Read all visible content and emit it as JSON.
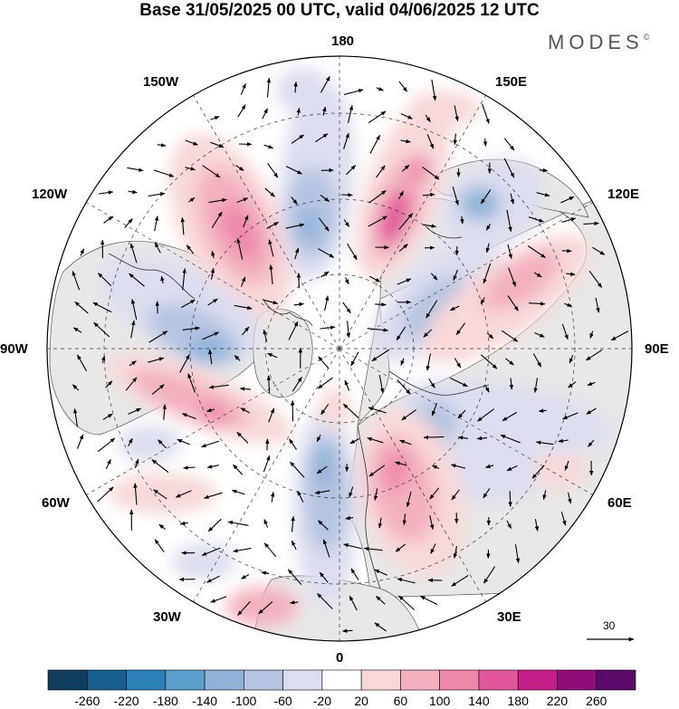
{
  "title": "Base 31/05/2025 00 UTC, valid 04/06/2025 12 UTC",
  "brand": "MODES",
  "brand_mark": "©",
  "longitude_labels": {
    "lon_180": "180",
    "lon_150E": "150E",
    "lon_120E": "120E",
    "lon_90E": "90E",
    "lon_60E": "60E",
    "lon_30E": "30E",
    "lon_0": "0",
    "lon_30W": "30W",
    "lon_60W": "60W",
    "lon_90W": "90W",
    "lon_120W": "120W",
    "lon_150W": "150W"
  },
  "reference_vector_label": "30",
  "colorbar": {
    "ticks": [
      "-260",
      "-220",
      "-180",
      "-140",
      "-100",
      "-60",
      "-20",
      "20",
      "60",
      "100",
      "140",
      "180",
      "220",
      "260"
    ],
    "colors": [
      "#0f3d5e",
      "#165f8f",
      "#2b80b8",
      "#5a9fcc",
      "#8fb2d8",
      "#b6c4e0",
      "#dcddee",
      "#ffffff",
      "#f7d8d8",
      "#f4b0bf",
      "#ee88ab",
      "#e0569a",
      "#c41f88",
      "#8e0e7a",
      "#5b0a6b"
    ]
  },
  "map": {
    "projection": "north-polar-stereographic",
    "anomaly_pattern": [
      {
        "sector": "180",
        "sign": "negative",
        "level": 100
      },
      {
        "sector": "160E",
        "sign": "positive",
        "level": 180
      },
      {
        "sector": "130E",
        "sign": "negative",
        "level": 140
      },
      {
        "sector": "100E",
        "sign": "positive",
        "level": 60
      },
      {
        "sector": "70E",
        "sign": "negative",
        "level": 60
      },
      {
        "sector": "40E",
        "sign": "positive",
        "level": 140
      },
      {
        "sector": "10W",
        "sign": "negative",
        "level": 140
      },
      {
        "sector": "60W",
        "sign": "positive",
        "level": 140
      },
      {
        "sector": "100W",
        "sign": "negative",
        "level": 140
      },
      {
        "sector": "145W",
        "sign": "positive",
        "level": 180
      }
    ]
  }
}
